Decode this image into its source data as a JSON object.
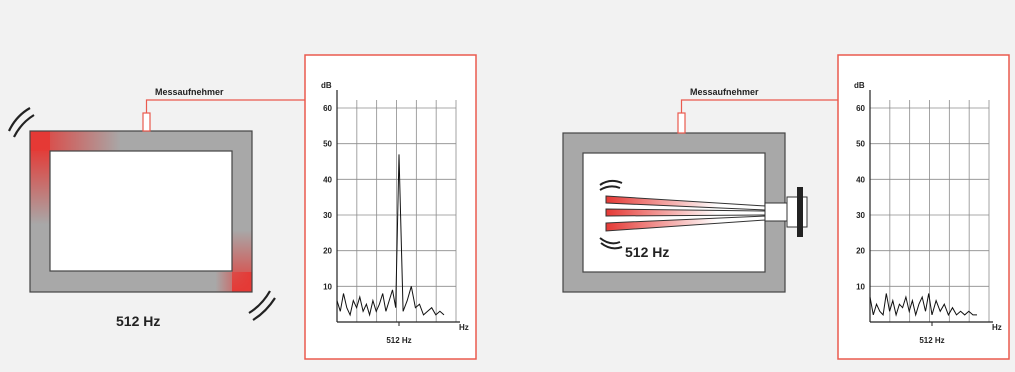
{
  "colors": {
    "background": "#f2f2f2",
    "frame": "#a8a8a8",
    "accent": "#e53935",
    "plot_border": "#ea5a4e",
    "grid": "#8c8c8c",
    "trace": "#111111"
  },
  "left_panel": {
    "sensor_label": "Messaufnehmer",
    "frequency_label": "512 Hz"
  },
  "right_panel": {
    "sensor_label": "Messaufnehmer",
    "frequency_label": "512 Hz"
  },
  "chart_data": [
    {
      "type": "line",
      "ylabel": "dB",
      "xlabel": "Hz",
      "ylim": [
        0,
        60
      ],
      "y_ticks": [
        10,
        20,
        30,
        40,
        50,
        60
      ],
      "x_tick_label": "512 Hz",
      "series": [
        {
          "values": [
            6,
            3,
            8,
            4,
            2,
            6,
            4,
            7,
            3,
            5,
            2,
            6,
            3,
            5,
            8,
            3,
            6,
            9,
            4,
            47,
            3,
            6,
            10,
            4,
            5,
            2,
            3,
            4,
            2,
            3,
            2
          ]
        }
      ]
    },
    {
      "type": "line",
      "ylabel": "dB",
      "xlabel": "Hz",
      "ylim": [
        0,
        60
      ],
      "y_ticks": [
        10,
        20,
        30,
        40,
        50,
        60
      ],
      "x_tick_label": "512 Hz",
      "series": [
        {
          "values": [
            7,
            2,
            5,
            3,
            2,
            8,
            3,
            6,
            2,
            5,
            4,
            7,
            3,
            6,
            2,
            5,
            7,
            3,
            8,
            2,
            6,
            3,
            5,
            2,
            4,
            2,
            3,
            2,
            3,
            2,
            2
          ]
        }
      ]
    }
  ]
}
